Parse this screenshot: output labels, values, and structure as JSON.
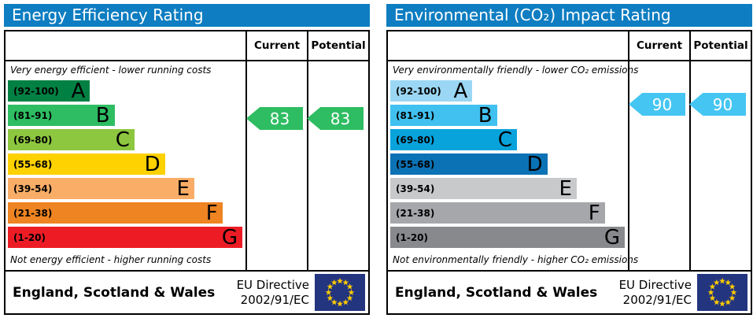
{
  "eu_flag": {
    "background": "#24357f",
    "star_color": "#ffcc00"
  },
  "panels": [
    {
      "title": "Energy Efficiency Rating",
      "header_bg": "#0e7dc1",
      "columns": {
        "current": "Current",
        "potential": "Potential"
      },
      "top_note": "Very energy efficient - lower running costs",
      "bottom_note": "Not energy efficient - higher running costs",
      "current": {
        "value": 83,
        "color": "#2ebd62"
      },
      "potential": {
        "value": 83,
        "color": "#2ebd62"
      },
      "bands": [
        {
          "letter": "A",
          "range": "(92-100)",
          "color": "#008143",
          "width_pct": 35
        },
        {
          "letter": "B",
          "range": "(81-91)",
          "color": "#2ebd62",
          "width_pct": 45.5
        },
        {
          "letter": "C",
          "range": "(69-80)",
          "color": "#8dc63f",
          "width_pct": 54
        },
        {
          "letter": "D",
          "range": "(55-68)",
          "color": "#fed100",
          "width_pct": 67
        },
        {
          "letter": "E",
          "range": "(39-54)",
          "color": "#f9ad66",
          "width_pct": 79.5
        },
        {
          "letter": "F",
          "range": "(21-38)",
          "color": "#ee8422",
          "width_pct": 91.5
        },
        {
          "letter": "G",
          "range": "(1-20)",
          "color": "#ed1c24",
          "width_pct": 100
        }
      ],
      "footer": {
        "region": "England, Scotland & Wales",
        "directive_line1": "EU Directive",
        "directive_line2": "2002/91/EC"
      }
    },
    {
      "title": "Environmental (CO₂) Impact Rating",
      "header_bg": "#0e7dc1",
      "columns": {
        "current": "Current",
        "potential": "Potential"
      },
      "top_note": "Very environmentally friendly - lower CO₂ emissions",
      "bottom_note": "Not environmentally friendly - higher CO₂ emissions",
      "current": {
        "value": 90,
        "color": "#45c6f2"
      },
      "potential": {
        "value": 90,
        "color": "#45c6f2"
      },
      "bands": [
        {
          "letter": "A",
          "range": "(92-100)",
          "color": "#9bd7f4",
          "width_pct": 35
        },
        {
          "letter": "B",
          "range": "(81-91)",
          "color": "#41c1f0",
          "width_pct": 45.5
        },
        {
          "letter": "C",
          "range": "(69-80)",
          "color": "#09a3dc",
          "width_pct": 54
        },
        {
          "letter": "D",
          "range": "(55-68)",
          "color": "#0b72b5",
          "width_pct": 67
        },
        {
          "letter": "E",
          "range": "(39-54)",
          "color": "#c8c9cb",
          "width_pct": 79.5
        },
        {
          "letter": "F",
          "range": "(21-38)",
          "color": "#a6a7ab",
          "width_pct": 91.5
        },
        {
          "letter": "G",
          "range": "(1-20)",
          "color": "#88898d",
          "width_pct": 100
        }
      ],
      "footer": {
        "region": "England, Scotland & Wales",
        "directive_line1": "EU Directive",
        "directive_line2": "2002/91/EC"
      }
    }
  ],
  "chart_data": [
    {
      "type": "bar",
      "title": "Energy Efficiency Rating",
      "subtitle_top": "Very energy efficient - lower running costs",
      "subtitle_bottom": "Not energy efficient - higher running costs",
      "columns": [
        "Current",
        "Potential"
      ],
      "bands": [
        {
          "label": "A",
          "range": [
            92,
            100
          ]
        },
        {
          "label": "B",
          "range": [
            81,
            91
          ]
        },
        {
          "label": "C",
          "range": [
            69,
            80
          ]
        },
        {
          "label": "D",
          "range": [
            55,
            68
          ]
        },
        {
          "label": "E",
          "range": [
            39,
            54
          ]
        },
        {
          "label": "F",
          "range": [
            21,
            38
          ]
        },
        {
          "label": "G",
          "range": [
            1,
            20
          ]
        }
      ],
      "current": 83,
      "current_band": "B",
      "potential": 83,
      "potential_band": "B",
      "region": "England, Scotland & Wales",
      "directive": "EU Directive 2002/91/EC"
    },
    {
      "type": "bar",
      "title": "Environmental (CO₂) Impact Rating",
      "subtitle_top": "Very environmentally friendly - lower CO₂ emissions",
      "subtitle_bottom": "Not environmentally friendly - higher CO₂ emissions",
      "columns": [
        "Current",
        "Potential"
      ],
      "bands": [
        {
          "label": "A",
          "range": [
            92,
            100
          ]
        },
        {
          "label": "B",
          "range": [
            81,
            91
          ]
        },
        {
          "label": "C",
          "range": [
            69,
            80
          ]
        },
        {
          "label": "D",
          "range": [
            55,
            68
          ]
        },
        {
          "label": "E",
          "range": [
            39,
            54
          ]
        },
        {
          "label": "F",
          "range": [
            21,
            38
          ]
        },
        {
          "label": "G",
          "range": [
            1,
            20
          ]
        }
      ],
      "current": 90,
      "current_band": "B",
      "potential": 90,
      "potential_band": "B",
      "region": "England, Scotland & Wales",
      "directive": "EU Directive 2002/91/EC"
    }
  ]
}
